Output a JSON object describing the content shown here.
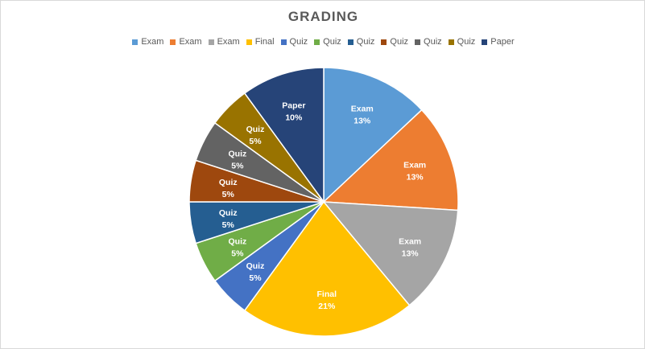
{
  "chart_data": {
    "type": "pie",
    "title": "GRADING",
    "legend_position": "top",
    "slices": [
      {
        "label": "Exam",
        "value": 13,
        "display": "13%",
        "color": "#5b9bd5"
      },
      {
        "label": "Exam",
        "value": 13,
        "display": "13%",
        "color": "#ed7d31"
      },
      {
        "label": "Exam",
        "value": 13,
        "display": "13%",
        "color": "#a5a5a5"
      },
      {
        "label": "Final",
        "value": 21,
        "display": "21%",
        "color": "#ffc000"
      },
      {
        "label": "Quiz",
        "value": 5,
        "display": "5%",
        "color": "#4472c4"
      },
      {
        "label": "Quiz",
        "value": 5,
        "display": "5%",
        "color": "#70ad47"
      },
      {
        "label": "Quiz",
        "value": 5,
        "display": "5%",
        "color": "#255e91"
      },
      {
        "label": "Quiz",
        "value": 5,
        "display": "5%",
        "color": "#9e480e"
      },
      {
        "label": "Quiz",
        "value": 5,
        "display": "5%",
        "color": "#636363"
      },
      {
        "label": "Quiz",
        "value": 5,
        "display": "5%",
        "color": "#997300"
      },
      {
        "label": "Paper",
        "value": 10,
        "display": "10%",
        "color": "#264478"
      }
    ]
  }
}
